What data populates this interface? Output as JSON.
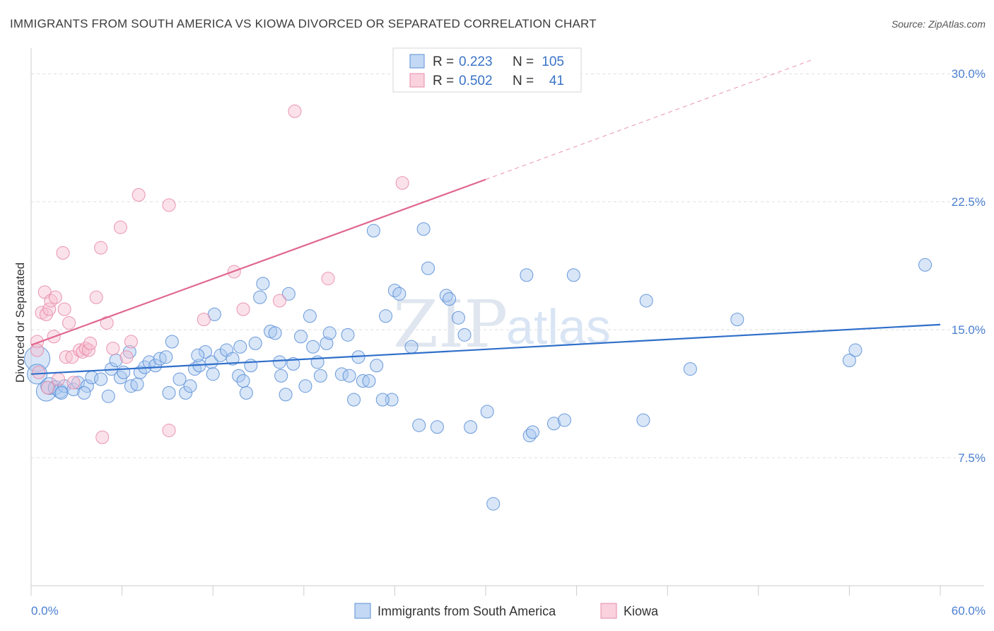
{
  "title": "IMMIGRANTS FROM SOUTH AMERICA VS KIOWA DIVORCED OR SEPARATED CORRELATION CHART",
  "source": "Source: ZipAtlas.com",
  "watermark": {
    "zip": "ZIP",
    "atlas": "atlas"
  },
  "colors": {
    "blue_fill": "#a9c8ef",
    "blue_stroke": "#5b8fd6",
    "blue_line": "#2f6fca",
    "pink_fill": "#f6bfd0",
    "pink_stroke": "#e88aa8",
    "pink_line": "#e0678f",
    "grid": "#dddddd",
    "tick_text": "#4a7fcf"
  },
  "legend": {
    "r_label": "R =",
    "n_label": "N =",
    "rows": [
      {
        "r": "0.223",
        "n": "105",
        "color": "blue"
      },
      {
        "r": "0.502",
        "n": "41",
        "color": "pink"
      }
    ]
  },
  "bottom_legend": [
    {
      "label": "Immigrants from South America",
      "color": "blue"
    },
    {
      "label": "Kiowa",
      "color": "pink"
    }
  ],
  "chart_data": {
    "type": "scatter",
    "title": "IMMIGRANTS FROM SOUTH AMERICA VS KIOWA DIVORCED OR SEPARATED CORRELATION CHART",
    "xlabel": "",
    "ylabel": "Divorced or Separated",
    "xlim": [
      0,
      60
    ],
    "ylim": [
      0,
      31.5
    ],
    "x_tick_labels": [
      "0.0%",
      "60.0%"
    ],
    "y_ticks": [
      7.5,
      15.0,
      22.5,
      30.0
    ],
    "y_tick_labels": [
      "7.5%",
      "15.0%",
      "22.5%",
      "30.0%"
    ],
    "grid": true,
    "legend_position": "top-center",
    "series": [
      {
        "name": "Immigrants from South America",
        "color": "blue",
        "regression": {
          "x0": 0,
          "y0": 12.4,
          "x1": 60,
          "y1": 15.3
        },
        "points": [
          [
            0.4,
            13.3,
            18
          ],
          [
            0.4,
            12.4,
            14
          ],
          [
            1.0,
            11.4,
            14
          ],
          [
            1.2,
            11.7,
            12
          ],
          [
            1.6,
            11.6,
            10
          ],
          [
            1.9,
            11.4,
            10
          ],
          [
            2.2,
            11.7,
            9
          ],
          [
            2.8,
            11.5,
            9
          ],
          [
            3.1,
            11.9,
            9
          ],
          [
            3.7,
            11.7,
            9
          ],
          [
            4.0,
            12.2,
            9
          ],
          [
            4.6,
            12.1,
            9
          ],
          [
            5.1,
            11.1,
            9
          ],
          [
            5.3,
            12.7,
            9
          ],
          [
            5.6,
            13.2,
            9
          ],
          [
            5.9,
            12.2,
            9
          ],
          [
            6.1,
            12.5,
            9
          ],
          [
            6.5,
            13.7,
            9
          ],
          [
            6.6,
            11.7,
            9
          ],
          [
            7.0,
            11.8,
            9
          ],
          [
            7.2,
            12.5,
            9
          ],
          [
            7.5,
            12.8,
            9
          ],
          [
            7.8,
            13.1,
            9
          ],
          [
            8.2,
            12.9,
            9
          ],
          [
            8.5,
            13.3,
            9
          ],
          [
            8.9,
            13.4,
            9
          ],
          [
            9.3,
            14.3,
            9
          ],
          [
            9.1,
            11.3,
            9
          ],
          [
            9.8,
            12.1,
            9
          ],
          [
            10.2,
            11.3,
            9
          ],
          [
            10.5,
            11.7,
            9
          ],
          [
            10.8,
            12.7,
            9
          ],
          [
            11.1,
            12.9,
            9
          ],
          [
            11.5,
            13.7,
            9
          ],
          [
            11.9,
            13.1,
            9
          ],
          [
            12.1,
            15.9,
            9
          ],
          [
            12.5,
            13.5,
            9
          ],
          [
            12.9,
            13.8,
            9
          ],
          [
            13.3,
            13.3,
            9
          ],
          [
            13.7,
            12.3,
            9
          ],
          [
            13.8,
            14.0,
            9
          ],
          [
            14.2,
            11.3,
            9
          ],
          [
            14.5,
            12.9,
            9
          ],
          [
            14.8,
            14.2,
            9
          ],
          [
            15.1,
            16.9,
            9
          ],
          [
            15.3,
            17.7,
            9
          ],
          [
            15.8,
            14.9,
            9
          ],
          [
            16.1,
            14.8,
            9
          ],
          [
            16.4,
            13.1,
            9
          ],
          [
            16.5,
            12.3,
            9
          ],
          [
            16.8,
            11.2,
            9
          ],
          [
            17.0,
            17.1,
            9
          ],
          [
            17.3,
            13.0,
            9
          ],
          [
            17.8,
            14.6,
            9
          ],
          [
            18.1,
            11.7,
            9
          ],
          [
            18.4,
            15.8,
            9
          ],
          [
            18.6,
            14.0,
            9
          ],
          [
            19.1,
            12.3,
            9
          ],
          [
            19.5,
            14.2,
            9
          ],
          [
            19.7,
            14.8,
            9
          ],
          [
            20.5,
            12.4,
            9
          ],
          [
            20.9,
            14.7,
            9
          ],
          [
            21.3,
            10.9,
            9
          ],
          [
            21.6,
            13.4,
            9
          ],
          [
            21.9,
            12.0,
            9
          ],
          [
            22.3,
            12.0,
            9
          ],
          [
            22.6,
            20.8,
            9
          ],
          [
            22.8,
            12.9,
            9
          ],
          [
            23.4,
            15.8,
            9
          ],
          [
            23.8,
            10.9,
            9
          ],
          [
            24.0,
            17.3,
            9
          ],
          [
            24.3,
            17.1,
            9
          ],
          [
            25.1,
            14.0,
            9
          ],
          [
            25.6,
            9.4,
            9
          ],
          [
            25.9,
            20.9,
            9
          ],
          [
            26.2,
            18.6,
            9
          ],
          [
            26.8,
            9.3,
            9
          ],
          [
            27.4,
            17.0,
            9
          ],
          [
            27.6,
            16.8,
            9
          ],
          [
            28.2,
            15.7,
            9
          ],
          [
            28.6,
            14.7,
            9
          ],
          [
            29.0,
            9.3,
            9
          ],
          [
            30.1,
            10.2,
            9
          ],
          [
            30.5,
            4.8,
            9
          ],
          [
            32.7,
            18.2,
            9
          ],
          [
            32.9,
            8.8,
            9
          ],
          [
            33.1,
            9.0,
            9
          ],
          [
            34.5,
            9.5,
            9
          ],
          [
            35.2,
            9.7,
            9
          ],
          [
            35.8,
            18.2,
            9
          ],
          [
            40.4,
            9.7,
            9
          ],
          [
            40.6,
            16.7,
            9
          ],
          [
            43.5,
            12.7,
            9
          ],
          [
            46.6,
            15.6,
            9
          ],
          [
            54.0,
            13.2,
            9
          ],
          [
            54.4,
            13.8,
            9
          ],
          [
            59.0,
            18.8,
            9
          ],
          [
            2.0,
            11.3,
            9
          ],
          [
            3.5,
            11.3,
            9
          ],
          [
            11.0,
            13.5,
            9
          ],
          [
            12.0,
            12.4,
            9
          ],
          [
            14.0,
            12.0,
            9
          ],
          [
            18.9,
            13.1,
            9
          ],
          [
            21.0,
            12.3,
            9
          ],
          [
            23.2,
            10.9,
            9
          ]
        ]
      },
      {
        "name": "Kiowa",
        "color": "pink",
        "regression": {
          "x0": 0,
          "y0": 14.1,
          "x1": 30,
          "y1": 23.8,
          "dash_x1": 51.5,
          "dash_y1": 30.8
        },
        "points": [
          [
            0.4,
            14.3,
            9
          ],
          [
            0.4,
            13.8,
            9
          ],
          [
            0.5,
            12.5,
            9
          ],
          [
            0.7,
            16.0,
            9
          ],
          [
            0.9,
            17.2,
            9
          ],
          [
            1.0,
            15.9,
            9
          ],
          [
            1.2,
            16.2,
            9
          ],
          [
            1.3,
            16.7,
            9
          ],
          [
            1.5,
            14.6,
            9
          ],
          [
            1.6,
            16.9,
            9
          ],
          [
            1.8,
            12.1,
            9
          ],
          [
            2.1,
            19.5,
            9
          ],
          [
            2.2,
            16.2,
            9
          ],
          [
            2.3,
            13.4,
            9
          ],
          [
            2.5,
            15.4,
            9
          ],
          [
            2.7,
            13.4,
            9
          ],
          [
            2.8,
            11.9,
            9
          ],
          [
            3.2,
            13.8,
            9
          ],
          [
            3.4,
            13.7,
            9
          ],
          [
            3.6,
            13.9,
            9
          ],
          [
            3.8,
            13.8,
            9
          ],
          [
            3.9,
            14.2,
            9
          ],
          [
            4.3,
            16.9,
            9
          ],
          [
            4.6,
            19.8,
            9
          ],
          [
            5.0,
            15.4,
            9
          ],
          [
            5.4,
            13.9,
            9
          ],
          [
            5.9,
            21.0,
            9
          ],
          [
            6.3,
            13.4,
            9
          ],
          [
            6.6,
            14.3,
            9
          ],
          [
            7.1,
            22.9,
            9
          ],
          [
            9.1,
            22.3,
            9
          ],
          [
            9.1,
            9.1,
            9
          ],
          [
            11.4,
            15.6,
            9
          ],
          [
            13.4,
            18.4,
            9
          ],
          [
            14.0,
            16.2,
            9
          ],
          [
            16.4,
            16.7,
            9
          ],
          [
            17.4,
            27.8,
            9
          ],
          [
            19.6,
            18.0,
            9
          ],
          [
            24.5,
            23.6,
            9
          ],
          [
            4.7,
            8.7,
            9
          ],
          [
            1.1,
            11.6,
            9
          ]
        ]
      }
    ]
  }
}
